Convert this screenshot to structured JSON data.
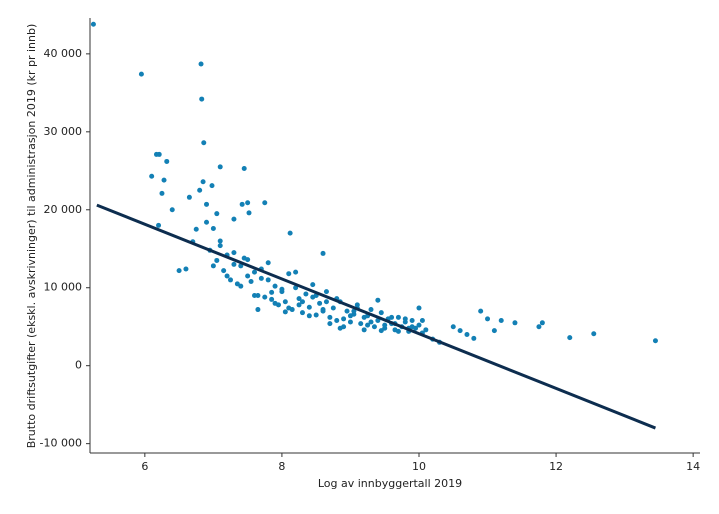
{
  "chart_data": {
    "type": "scatter",
    "x_label": "Log av innbyggertall 2019",
    "y_label": "Brutto driftsutgifter (ekskl. avskrivninger) til administrasjon 2019 (kr pr innb)",
    "xlim": [
      5.2,
      14.1
    ],
    "ylim": [
      -11200,
      44600
    ],
    "xticks": [
      6,
      8,
      10,
      12,
      14
    ],
    "yticks": [
      {
        "value": -10000,
        "label": "-10 000"
      },
      0,
      {
        "value": 10000,
        "label": "10 000"
      },
      {
        "value": 20000,
        "label": "20 000"
      },
      {
        "value": 30000,
        "label": "30 000"
      },
      {
        "value": 40000,
        "label": "40 000"
      }
    ],
    "color": "#1380b5",
    "x": [
      5.25,
      5.95,
      6.82,
      6.83,
      6.86,
      6.17,
      6.21,
      6.32,
      6.28,
      6.1,
      6.25,
      7.1,
      7.45,
      6.85,
      6.98,
      6.8,
      6.4,
      6.2,
      6.65,
      6.9,
      7.42,
      7.5,
      7.75,
      7.52,
      7.05,
      7.3,
      8.12,
      8.6,
      6.5,
      6.6,
      6.7,
      6.75,
      6.9,
      7.0,
      6.95,
      7.05,
      7.1,
      7.15,
      7.2,
      7.25,
      7.3,
      7.35,
      7.4,
      7.45,
      7.5,
      7.55,
      7.6,
      7.65,
      7.7,
      7.75,
      7.8,
      7.85,
      7.9,
      7.95,
      8.0,
      8.05,
      8.1,
      8.15,
      8.2,
      8.25,
      8.3,
      8.35,
      8.4,
      8.45,
      8.5,
      8.55,
      8.6,
      8.65,
      8.7,
      8.75,
      8.8,
      8.85,
      8.9,
      8.95,
      9.0,
      9.05,
      9.1,
      9.15,
      9.2,
      9.25,
      9.3,
      9.35,
      9.4,
      9.45,
      9.5,
      9.55,
      9.6,
      9.65,
      9.7,
      9.75,
      9.8,
      9.85,
      9.9,
      9.95,
      10.0,
      10.05,
      10.1,
      7.0,
      7.2,
      7.4,
      7.6,
      7.7,
      7.8,
      7.9,
      8.0,
      8.1,
      8.2,
      8.3,
      8.4,
      8.5,
      8.6,
      8.7,
      8.8,
      8.9,
      9.0,
      9.1,
      9.2,
      9.3,
      9.4,
      9.5,
      9.6,
      9.7,
      9.8,
      9.9,
      10.0,
      7.1,
      7.3,
      7.5,
      7.65,
      7.85,
      8.05,
      8.25,
      8.45,
      8.65,
      8.85,
      9.05,
      9.25,
      9.45,
      9.65,
      9.85,
      10.05,
      10.2,
      10.3,
      10.5,
      10.6,
      10.7,
      10.8,
      10.9,
      11.0,
      11.1,
      11.2,
      11.4,
      11.75,
      11.8,
      12.2,
      12.55,
      13.45
    ],
    "y": [
      43800,
      37400,
      38700,
      34200,
      28600,
      27100,
      27100,
      26200,
      23800,
      24300,
      22100,
      25500,
      25300,
      23600,
      23100,
      22500,
      20000,
      18000,
      21600,
      20700,
      20700,
      20900,
      20900,
      19600,
      19500,
      18800,
      17000,
      14400,
      12200,
      12400,
      15900,
      17500,
      18400,
      17600,
      14800,
      13500,
      16000,
      12200,
      14200,
      11000,
      13000,
      10500,
      12800,
      13800,
      11500,
      10800,
      12000,
      9000,
      11200,
      8800,
      13200,
      8500,
      10200,
      7800,
      9500,
      8200,
      11800,
      7200,
      10000,
      8600,
      6800,
      9200,
      7500,
      8800,
      6500,
      8000,
      7000,
      9500,
      6200,
      7400,
      5800,
      8200,
      6000,
      7000,
      5600,
      6600,
      7800,
      5400,
      6200,
      5200,
      7200,
      5000,
      5800,
      6800,
      4800,
      6000,
      5400,
      4600,
      6200,
      5000,
      5600,
      4400,
      5800,
      4800,
      5200,
      4200,
      4600,
      12800,
      11500,
      10200,
      9000,
      12400,
      11000,
      8000,
      9800,
      7400,
      12000,
      8200,
      6400,
      9000,
      7200,
      5400,
      8600,
      5000,
      6400,
      7400,
      4600,
      5600,
      8400,
      5200,
      6200,
      4400,
      6000,
      5000,
      7400,
      15400,
      14500,
      13600,
      7200,
      9400,
      6900,
      7800,
      10400,
      8200,
      4800,
      7000,
      6400,
      4500,
      5400,
      4800,
      5800,
      3400,
      3000,
      5000,
      4500,
      4000,
      3500,
      7000,
      6000,
      4500,
      5800,
      5500,
      5000,
      5500,
      3600,
      4100,
      3200
    ],
    "trendline": {
      "x": [
        5.3,
        13.45
      ],
      "y": [
        20600,
        -8000
      ],
      "color": "#0d2d4f"
    }
  }
}
